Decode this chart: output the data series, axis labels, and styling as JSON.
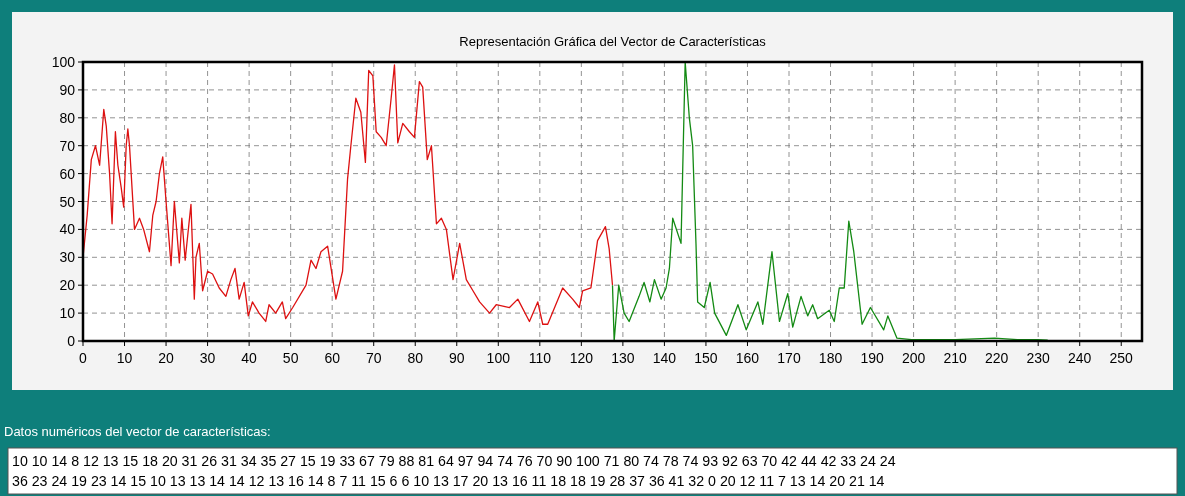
{
  "chart_data": {
    "type": "line",
    "title": "Representación Gráfica del Vector de Características",
    "xlim": [
      0,
      255
    ],
    "ylim": [
      0,
      100
    ],
    "xticks": [
      0,
      10,
      20,
      30,
      40,
      50,
      60,
      70,
      80,
      90,
      100,
      110,
      120,
      130,
      140,
      150,
      160,
      170,
      180,
      190,
      200,
      210,
      220,
      230,
      240,
      250
    ],
    "yticks": [
      0,
      10,
      20,
      30,
      40,
      50,
      60,
      70,
      80,
      90,
      100
    ],
    "grid": true,
    "line_style": "solid",
    "marker": "none",
    "series": [
      {
        "color": "#dd1111",
        "x": [
          0,
          1,
          2,
          3,
          4,
          5,
          5.6,
          6.4,
          7,
          7.8,
          8.4,
          9.2,
          9.8,
          10.4,
          10.8,
          11.2,
          12.4,
          13.6,
          14.6,
          16,
          16.8,
          17.6,
          18.4,
          19.2,
          20,
          21.2,
          22,
          23.2,
          23.8,
          24.6,
          26,
          26.8,
          27.2,
          28,
          28.8,
          30,
          31.2,
          32.8,
          34.4,
          35.6,
          36.6,
          37.6,
          38.8,
          39.8,
          40.8,
          42.4,
          44,
          44.8,
          46.4,
          48,
          48.8,
          50.5,
          53.7,
          54.9,
          56.1,
          57.3,
          58.9,
          60.9,
          62.5,
          63.7,
          64.5,
          65.7,
          66.9,
          68,
          68.8,
          69.8,
          70.6,
          71.8,
          73,
          74.2,
          75,
          75.8,
          77,
          78.6,
          79.8,
          81,
          81.8,
          82.9,
          83.9,
          85.1,
          86.3,
          87.5,
          89.1,
          90.7,
          92.3,
          93.9,
          95.5,
          97.9,
          99.5,
          102.7,
          104.7,
          107.5,
          109.5,
          110.7,
          111.9,
          115.5,
          117.9,
          119.5,
          120.3,
          122.3,
          123.9,
          125.8,
          126.7,
          127.5
        ],
        "values": [
          30,
          45,
          65,
          70,
          63,
          83,
          77,
          60,
          42,
          75,
          63,
          55,
          48,
          70,
          76,
          70,
          40,
          44,
          40,
          32,
          45,
          50,
          60,
          66,
          50,
          27,
          50,
          28,
          44,
          29,
          49,
          15,
          30,
          35,
          18,
          25,
          24,
          19,
          16,
          22,
          26,
          15,
          21,
          9,
          14,
          10,
          7,
          13,
          10,
          14,
          8,
          12,
          20,
          29,
          26,
          32,
          34,
          15,
          25,
          58,
          70,
          87,
          82,
          64,
          97,
          95,
          75,
          73,
          70,
          87,
          99,
          71,
          78,
          75,
          73,
          93,
          91,
          65,
          70,
          42,
          44,
          40,
          22,
          35,
          22,
          18,
          14,
          10,
          13,
          12,
          15,
          7,
          14,
          6,
          6,
          19,
          15,
          12,
          18,
          19,
          36,
          41,
          33,
          20
        ]
      },
      {
        "color": "#138a13",
        "x": [
          127.5,
          127.9,
          129,
          130.3,
          131.5,
          133.9,
          135.1,
          136.5,
          137.6,
          139.2,
          140.4,
          141.2,
          142,
          144,
          145,
          146,
          146.8,
          147.6,
          148,
          149.6,
          151,
          152.1,
          154.9,
          157.7,
          159.7,
          162.5,
          163.7,
          165.9,
          167.7,
          169.7,
          170.9,
          172.9,
          174.5,
          175.7,
          176.9,
          179.7,
          180.9,
          182.1,
          183.3,
          184.4,
          185.6,
          187.6,
          189.6,
          192.8,
          193.8,
          196,
          199.5,
          210,
          219.5,
          225,
          229.9,
          232.3
        ],
        "values": [
          20,
          0,
          20,
          10,
          7,
          16,
          21,
          14,
          22,
          15,
          19,
          26,
          44,
          35,
          100,
          80,
          70,
          35,
          14,
          12,
          21,
          10,
          2,
          13,
          4,
          14,
          6,
          32,
          7,
          17,
          5,
          16,
          9,
          13,
          8,
          11,
          7,
          19,
          19,
          43,
          32,
          6,
          12,
          4,
          9,
          1,
          0.5,
          0.5,
          1,
          0.5,
          0.5,
          0.3
        ]
      }
    ],
    "annotations": [
      "Datos numéricos del vector de características:",
      "10 10 14 8 12 13 15 18 20 31 26 31 34 35 27 15 19 33 67 79 88 81 64 97 94 74 76 70 90 100 71 80 74 78 74 93 92 63 70 42 44 42 33 24 24",
      "36 23 24 19 23 14 15 10 13 13 14 14 12 13 16 14 8 7 11 15 6 6 10 13 17 20 13 16 11 18 18 19 28 37 36 41 32 0 20 12 11 7 13 14 20 21 14"
    ]
  }
}
